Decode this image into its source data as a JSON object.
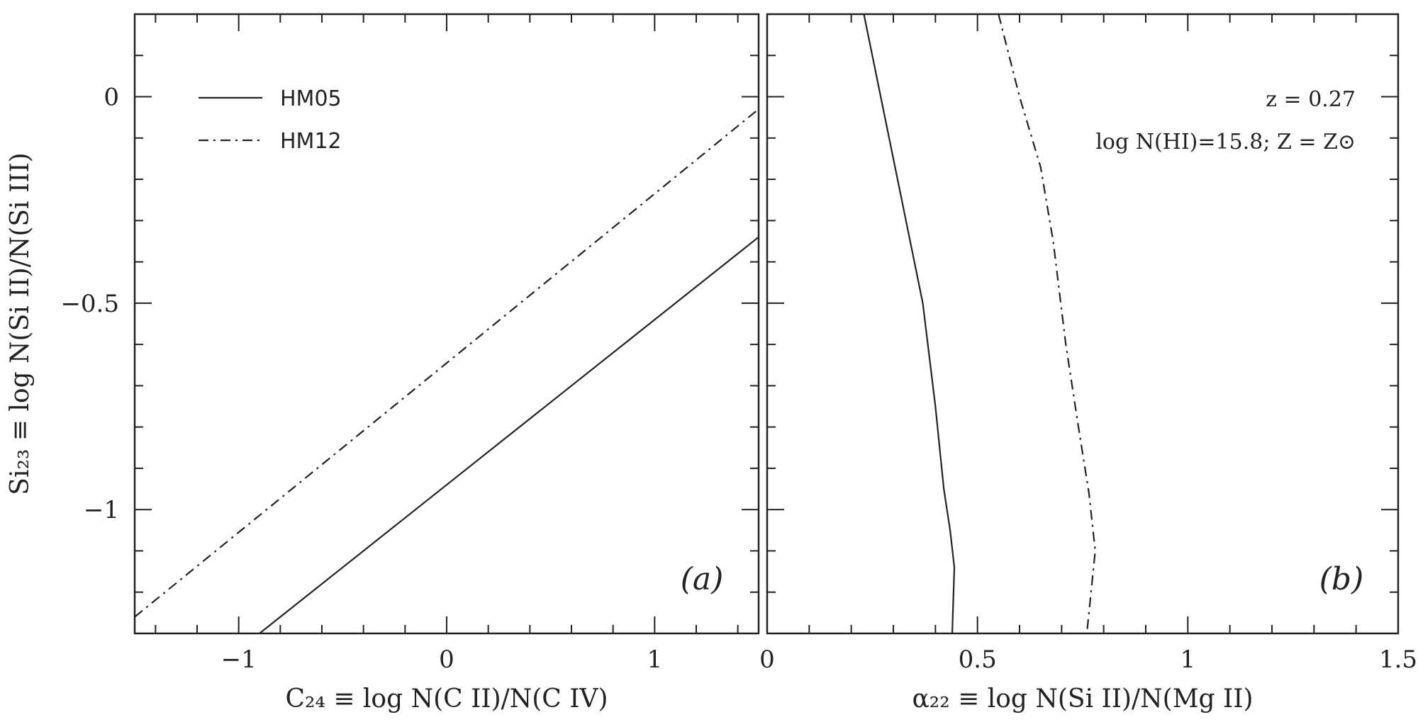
{
  "chart_data": [
    {
      "type": "line",
      "panel_label": "(a)",
      "xlabel": "C₂₄ ≡ log N(C II)/N(C IV)",
      "ylabel": "Si₂₃ ≡ log N(Si II)/N(Si III)",
      "xlim": [
        -1.5,
        1.5
      ],
      "ylim": [
        -1.3,
        0.2
      ],
      "x_ticks": [
        -1,
        0,
        1
      ],
      "x_tick_labels": [
        "−1",
        "0",
        "1"
      ],
      "y_ticks": [
        0,
        -0.5,
        -1
      ],
      "y_tick_labels": [
        "0",
        "−0.5",
        "−1"
      ],
      "legend": {
        "placement": "top-left",
        "entries": [
          {
            "label": "HM05",
            "style": "solid"
          },
          {
            "label": "HM12",
            "style": "dash-dot"
          }
        ]
      },
      "series": [
        {
          "name": "HM05",
          "style": "solid",
          "x": [
            -0.9,
            1.5
          ],
          "y": [
            -1.3,
            -0.34
          ]
        },
        {
          "name": "HM12",
          "style": "dash-dot",
          "x": [
            -1.5,
            1.5
          ],
          "y": [
            -1.26,
            -0.03
          ]
        }
      ]
    },
    {
      "type": "line",
      "panel_label": "(b)",
      "xlabel": "α₂₂ ≡ log N(Si II)/N(Mg II)",
      "xlim": [
        0,
        1.5
      ],
      "ylim": [
        -1.3,
        0.2
      ],
      "x_ticks": [
        0,
        0.5,
        1,
        1.5
      ],
      "x_tick_labels": [
        "0",
        "0.5",
        "1",
        "1.5"
      ],
      "annotations": [
        "z = 0.27",
        "log N(HI)=15.8; Z = Z⊙"
      ],
      "series": [
        {
          "name": "HM05",
          "style": "solid",
          "x": [
            0.23,
            0.27,
            0.33,
            0.37,
            0.4,
            0.42,
            0.435,
            0.445,
            0.44
          ],
          "y": [
            0.2,
            0.0,
            -0.3,
            -0.5,
            -0.75,
            -0.95,
            -1.05,
            -1.14,
            -1.3
          ]
        },
        {
          "name": "HM12",
          "style": "dash-dot",
          "x": [
            0.55,
            0.6,
            0.65,
            0.68,
            0.71,
            0.74,
            0.765,
            0.78,
            0.76
          ],
          "y": [
            0.2,
            0.0,
            -0.17,
            -0.35,
            -0.6,
            -0.8,
            -0.96,
            -1.1,
            -1.3
          ]
        }
      ]
    }
  ]
}
